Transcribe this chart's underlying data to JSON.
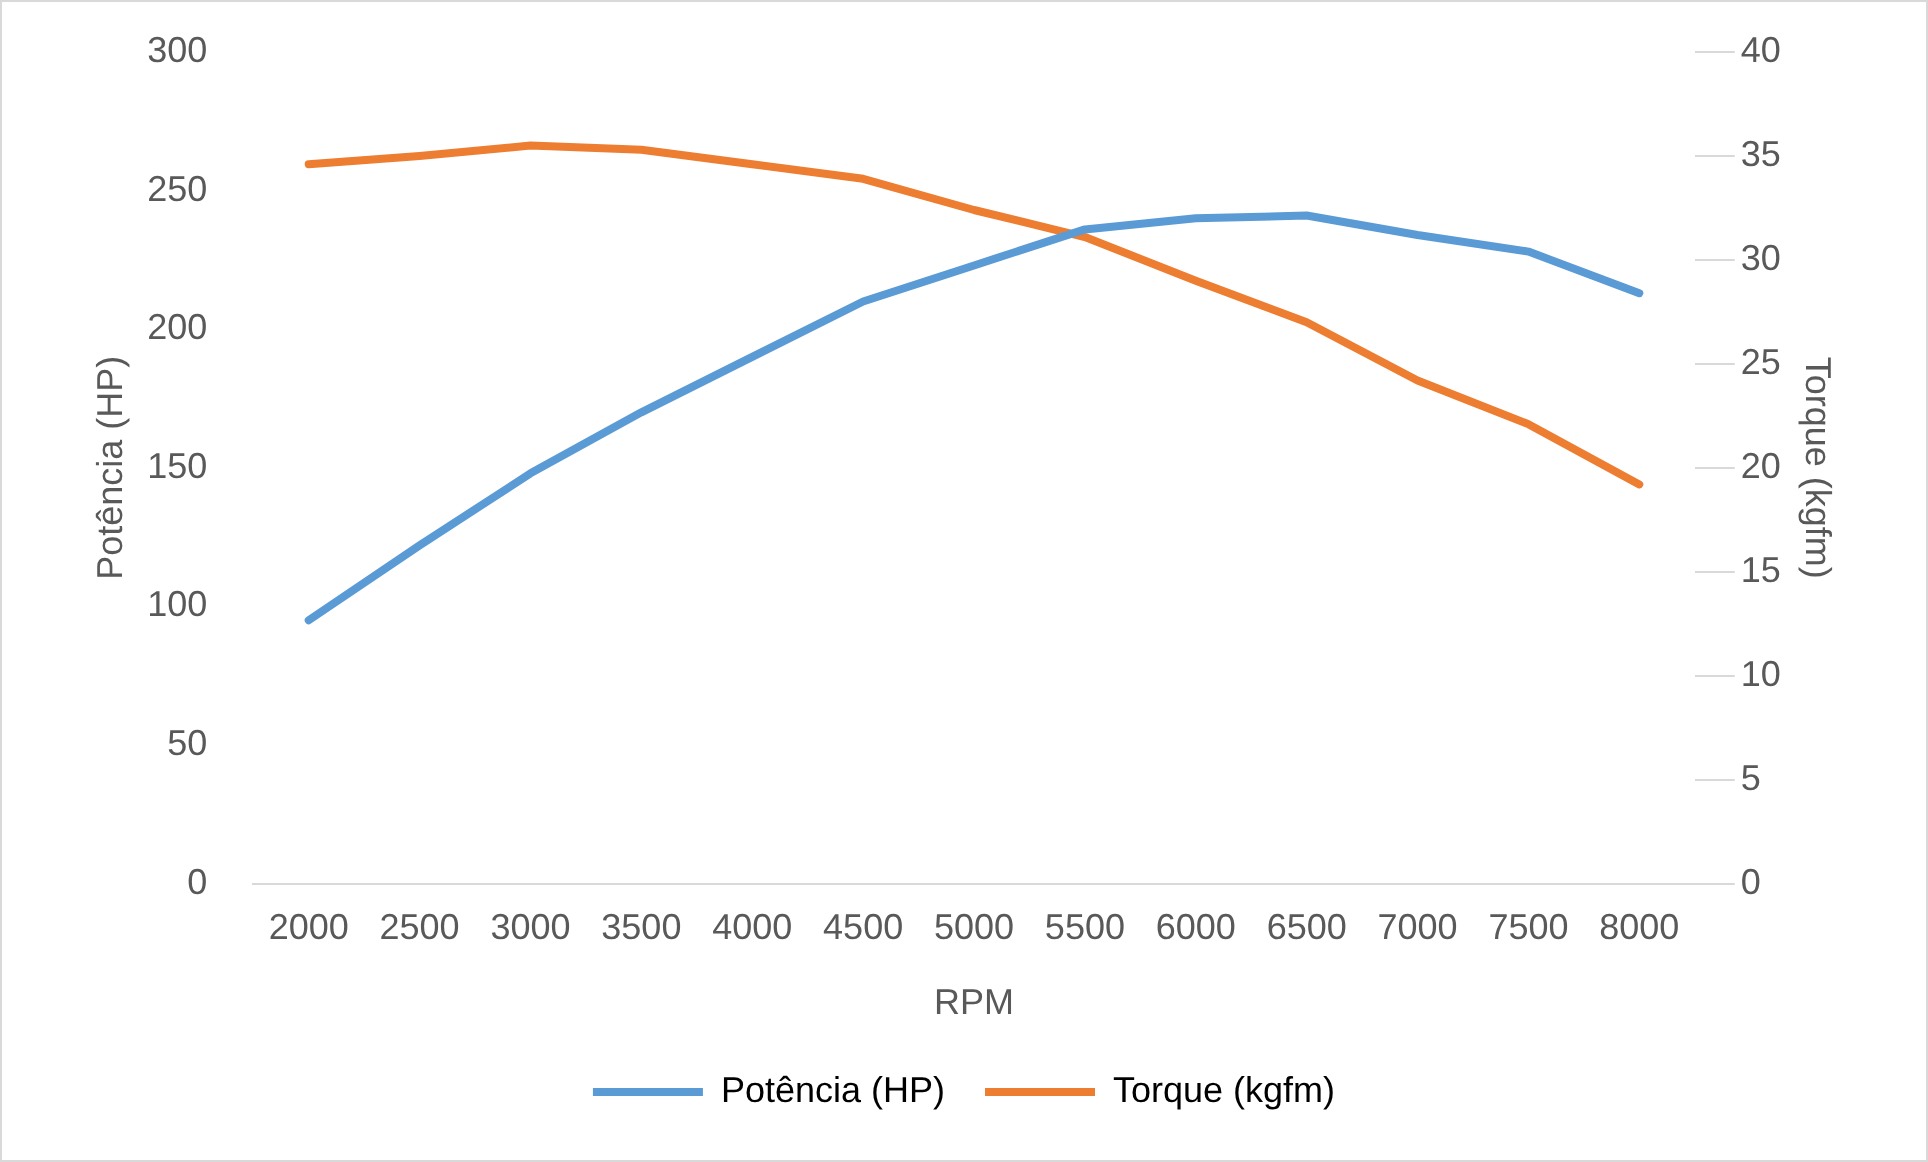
{
  "chart_data": {
    "type": "line",
    "xlabel": "RPM",
    "ylabel": "Potência (HP)",
    "y2label": "Torque (kgfm)",
    "categories": [
      "2000",
      "2500",
      "3000",
      "3500",
      "4000",
      "4500",
      "5000",
      "5500",
      "6000",
      "6500",
      "7000",
      "7500",
      "8000"
    ],
    "series": [
      {
        "name": "Potência (HP)",
        "color": "#5b9bd5",
        "values": [
          95,
          122,
          148,
          170,
          190,
          210,
          223,
          236,
          240,
          241,
          234,
          228,
          213
        ]
      },
      {
        "name": "Torque (kgfm)",
        "color": "#ed7d31",
        "axis": "y2",
        "values": [
          34.6,
          35.0,
          35.5,
          35.3,
          34.6,
          33.9,
          32.4,
          31.1,
          29.0,
          27.0,
          24.2,
          22.1,
          19.2
        ]
      }
    ],
    "ylim": [
      0,
      300
    ],
    "yticks": [
      0,
      50,
      100,
      150,
      200,
      250,
      300
    ],
    "y2lim": [
      0,
      40
    ],
    "y2ticks": [
      0,
      5,
      10,
      15,
      20,
      25,
      30,
      35,
      40
    ],
    "grid": false,
    "legend": "bottom",
    "marker": "none",
    "line_style": "solid"
  }
}
